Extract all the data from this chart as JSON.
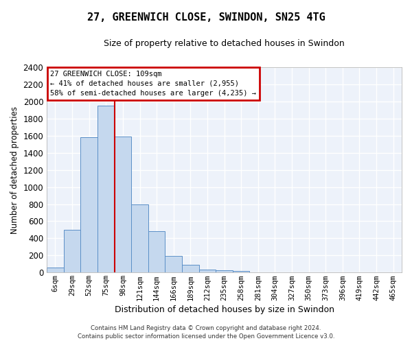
{
  "title": "27, GREENWICH CLOSE, SWINDON, SN25 4TG",
  "subtitle": "Size of property relative to detached houses in Swindon",
  "xlabel": "Distribution of detached houses by size in Swindon",
  "ylabel": "Number of detached properties",
  "bar_color": "#c5d8ee",
  "bar_edge_color": "#5b8fc7",
  "background_color": "#edf2fa",
  "grid_color": "#ffffff",
  "categories": [
    "6sqm",
    "29sqm",
    "52sqm",
    "75sqm",
    "98sqm",
    "121sqm",
    "144sqm",
    "166sqm",
    "189sqm",
    "212sqm",
    "235sqm",
    "258sqm",
    "281sqm",
    "304sqm",
    "327sqm",
    "350sqm",
    "373sqm",
    "396sqm",
    "419sqm",
    "442sqm",
    "465sqm"
  ],
  "values": [
    60,
    500,
    1580,
    1950,
    1590,
    800,
    480,
    195,
    90,
    35,
    30,
    20,
    0,
    0,
    0,
    0,
    0,
    0,
    0,
    0,
    0
  ],
  "ylim": [
    0,
    2400
  ],
  "yticks": [
    0,
    200,
    400,
    600,
    800,
    1000,
    1200,
    1400,
    1600,
    1800,
    2000,
    2200,
    2400
  ],
  "annotation_line1": "27 GREENWICH CLOSE: 109sqm",
  "annotation_line2": "← 41% of detached houses are smaller (2,955)",
  "annotation_line3": "58% of semi-detached houses are larger (4,235) →",
  "annotation_box_edgecolor": "#cc0000",
  "red_line_x": 3.5,
  "footer_line1": "Contains HM Land Registry data © Crown copyright and database right 2024.",
  "footer_line2": "Contains public sector information licensed under the Open Government Licence v3.0."
}
